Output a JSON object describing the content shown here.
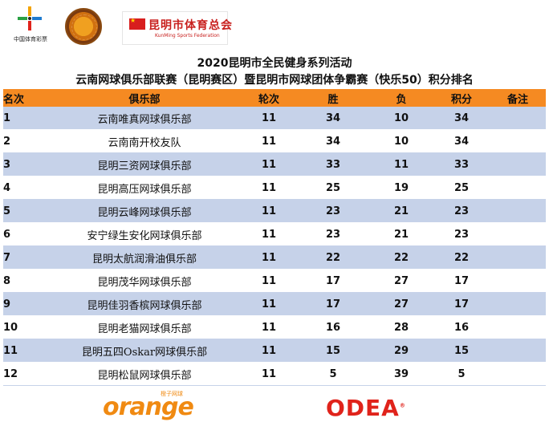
{
  "logos": {
    "org1_caption": "中国体育彩票",
    "org3_name": "昆明市体育总会",
    "org3_sub": "KunMing Sports Federation"
  },
  "title": {
    "line1": "2020昆明市全民健身系列活动",
    "line2": "云南网球俱乐部联赛（昆明赛区）暨昆明市网球团体争霸赛（快乐50）积分排名"
  },
  "table": {
    "headers": {
      "rank": "名次",
      "club": "俱乐部",
      "rounds": "轮次",
      "wins": "胜",
      "losses": "负",
      "points": "积分",
      "notes": "备注"
    },
    "rows": [
      {
        "rank": "1",
        "club": "云南唯真网球俱乐部",
        "rounds": "11",
        "wins": "34",
        "losses": "10",
        "points": "34",
        "notes": ""
      },
      {
        "rank": "2",
        "club": "云南南开校友队",
        "rounds": "11",
        "wins": "34",
        "losses": "10",
        "points": "34",
        "notes": ""
      },
      {
        "rank": "3",
        "club": "昆明三资网球俱乐部",
        "rounds": "11",
        "wins": "33",
        "losses": "11",
        "points": "33",
        "notes": ""
      },
      {
        "rank": "4",
        "club": "昆明高压网球俱乐部",
        "rounds": "11",
        "wins": "25",
        "losses": "19",
        "points": "25",
        "notes": ""
      },
      {
        "rank": "5",
        "club": "昆明云峰网球俱乐部",
        "rounds": "11",
        "wins": "23",
        "losses": "21",
        "points": "23",
        "notes": ""
      },
      {
        "rank": "6",
        "club": "安宁绿生安化网球俱乐部",
        "rounds": "11",
        "wins": "23",
        "losses": "21",
        "points": "23",
        "notes": ""
      },
      {
        "rank": "7",
        "club": "昆明太航润滑油俱乐部",
        "rounds": "11",
        "wins": "22",
        "losses": "22",
        "points": "22",
        "notes": ""
      },
      {
        "rank": "8",
        "club": "昆明茂华网球俱乐部",
        "rounds": "11",
        "wins": "17",
        "losses": "27",
        "points": "17",
        "notes": ""
      },
      {
        "rank": "9",
        "club": "昆明佳羽香槟网球俱乐部",
        "rounds": "11",
        "wins": "17",
        "losses": "27",
        "points": "17",
        "notes": ""
      },
      {
        "rank": "10",
        "club": "昆明老猫网球俱乐部",
        "rounds": "11",
        "wins": "16",
        "losses": "28",
        "points": "16",
        "notes": ""
      },
      {
        "rank": "11",
        "club": "昆明五四Oskar网球俱乐部",
        "rounds": "11",
        "wins": "15",
        "losses": "29",
        "points": "15",
        "notes": ""
      },
      {
        "rank": "12",
        "club": "昆明松鼠网球俱乐部",
        "rounds": "11",
        "wins": "5",
        "losses": "39",
        "points": "5",
        "notes": ""
      }
    ]
  },
  "sponsors": {
    "orange": "orange",
    "orange_small": "橙子网球",
    "odea": "ODEA"
  },
  "colors": {
    "header_bg": "#f58a22",
    "row_alt_bg": "#c6d2e9"
  }
}
